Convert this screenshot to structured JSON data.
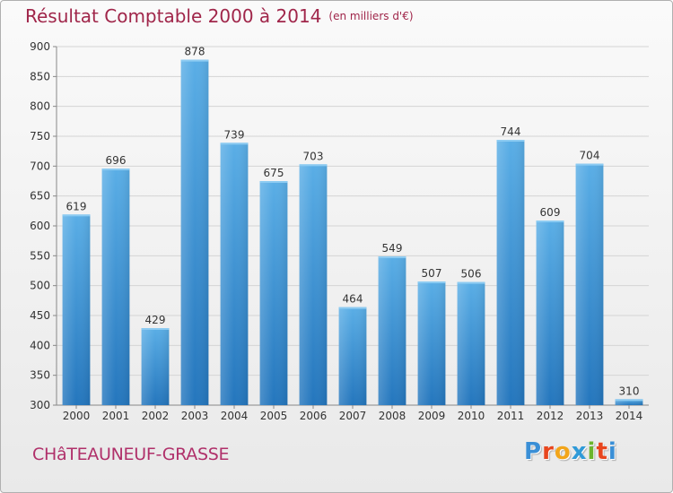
{
  "header": {
    "title": "Résultat Comptable 2000 à 2014",
    "subtitle": "(en milliers d'€)"
  },
  "footer": {
    "city": "CHâTEAUNEUF-GRASSE",
    "logo": {
      "letters": [
        "P",
        "r",
        "o",
        "x",
        "i",
        "t",
        "i"
      ],
      "colors": [
        "#3a8fd6",
        "#e8461e",
        "#f2a51a",
        "#2f9ad8",
        "#6cb52d",
        "#e8461e",
        "#3a8fd6"
      ]
    }
  },
  "chart_data": {
    "type": "bar",
    "title": "Résultat Comptable 2000 à 2014",
    "subtitle": "(en milliers d'€)",
    "xlabel": "",
    "ylabel": "",
    "categories": [
      "2000",
      "2001",
      "2002",
      "2003",
      "2004",
      "2005",
      "2006",
      "2007",
      "2008",
      "2009",
      "2010",
      "2011",
      "2012",
      "2013",
      "2014"
    ],
    "values": [
      619,
      696,
      429,
      878,
      739,
      675,
      703,
      464,
      549,
      507,
      506,
      744,
      609,
      704,
      310
    ],
    "ylim": [
      300,
      900
    ],
    "yticks": [
      300,
      350,
      400,
      450,
      500,
      550,
      600,
      650,
      700,
      750,
      800,
      850,
      900
    ],
    "grid": true,
    "colors": {
      "bar_top": "#5aaee6",
      "bar_bottom": "#2476bd",
      "grid": "#d4d4d4",
      "text": "#333333",
      "title": "#a0264a"
    }
  }
}
